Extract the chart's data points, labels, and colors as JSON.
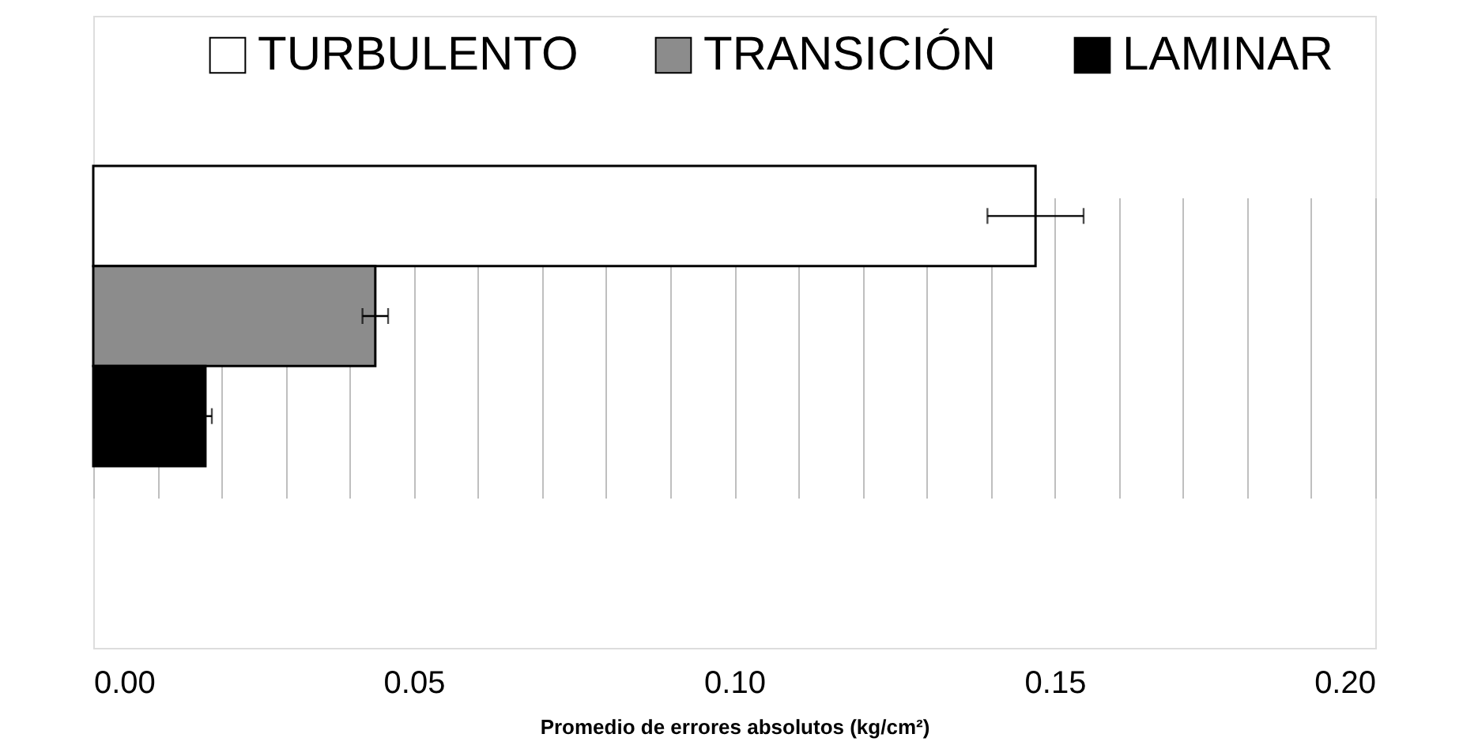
{
  "chart_data": {
    "type": "bar",
    "orientation": "horizontal",
    "xlabel": "Promedio de errores absolutos (kg/cm²)",
    "categories": [
      null
    ],
    "series": [
      {
        "name": "TURBULENTO",
        "color": "#ffffff",
        "values": [
          0.147
        ],
        "errors": [
          0.0075
        ]
      },
      {
        "name": "TRANSICIÓN",
        "color": "#8c8c8c",
        "values": [
          0.044
        ],
        "errors": [
          0.002
        ]
      },
      {
        "name": "LAMINAR",
        "color": "#000000",
        "values": [
          0.0175
        ],
        "errors": [
          0.001
        ]
      }
    ],
    "xlim": [
      0,
      0.2
    ],
    "xticks": [
      {
        "value": 0,
        "label": "0.00"
      },
      {
        "value": 0.01,
        "label": null
      },
      {
        "value": 0.02,
        "label": null
      },
      {
        "value": 0.03,
        "label": null
      },
      {
        "value": 0.04,
        "label": null
      },
      {
        "value": 0.05,
        "label": "0.05"
      },
      {
        "value": 0.06,
        "label": null
      },
      {
        "value": 0.07,
        "label": null
      },
      {
        "value": 0.08,
        "label": null
      },
      {
        "value": 0.09,
        "label": null
      },
      {
        "value": 0.1,
        "label": "0.10"
      },
      {
        "value": 0.11,
        "label": null
      },
      {
        "value": 0.12,
        "label": null
      },
      {
        "value": 0.13,
        "label": null
      },
      {
        "value": 0.14,
        "label": null
      },
      {
        "value": 0.15,
        "label": "0.15"
      },
      {
        "value": 0.16,
        "label": null
      },
      {
        "value": 0.17,
        "label": null
      },
      {
        "value": 0.18,
        "label": null
      },
      {
        "value": 0.19,
        "label": null
      },
      {
        "value": 0.2,
        "label": "0.20"
      }
    ],
    "grid": "x",
    "legend": "top"
  }
}
